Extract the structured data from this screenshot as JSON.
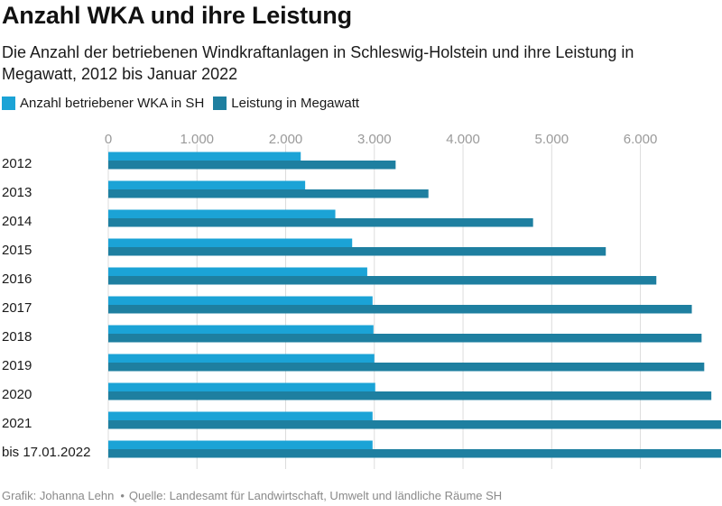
{
  "title": "Anzahl WKA und ihre Leistung",
  "subtitle": "Die Anzahl der betriebenen Windkraftanlagen in Schleswig-Holstein und ihre Leistung in Megawatt, 2012 bis Januar 2022",
  "footer": {
    "credit": "Grafik: Johanna Lehn",
    "source": "Quelle: Landesamt für Landwirtschaft, Umwelt und ländliche Räume SH"
  },
  "colors": {
    "series_1": "#1ba3d6",
    "series_2": "#1e7fa0",
    "grid": "#dcdcdc",
    "tick_label": "#9a9a9a"
  },
  "chart_data": {
    "type": "bar",
    "orientation": "horizontal",
    "title": "Anzahl WKA und ihre Leistung",
    "categories": [
      "2012",
      "2013",
      "2014",
      "2015",
      "2016",
      "2017",
      "2018",
      "2019",
      "2020",
      "2021",
      "bis 17.01.2022"
    ],
    "series": [
      {
        "name": "Anzahl betriebener WKA in SH",
        "values": [
          2170,
          2220,
          2560,
          2750,
          2920,
          2980,
          2990,
          3000,
          3010,
          2980,
          2980
        ]
      },
      {
        "name": "Leistung in Megawatt",
        "values": [
          3240,
          3610,
          4790,
          5610,
          6180,
          6580,
          6690,
          6720,
          6800,
          6910,
          6910
        ]
      }
    ],
    "xlim": [
      0,
      6900
    ],
    "xticks": [
      0,
      1000,
      2000,
      3000,
      4000,
      5000,
      6000
    ],
    "xtick_labels": [
      "0",
      "1.000",
      "2.000",
      "3.000",
      "4.000",
      "5.000",
      "6.000"
    ],
    "legend_position": "top-left",
    "grid": true
  }
}
